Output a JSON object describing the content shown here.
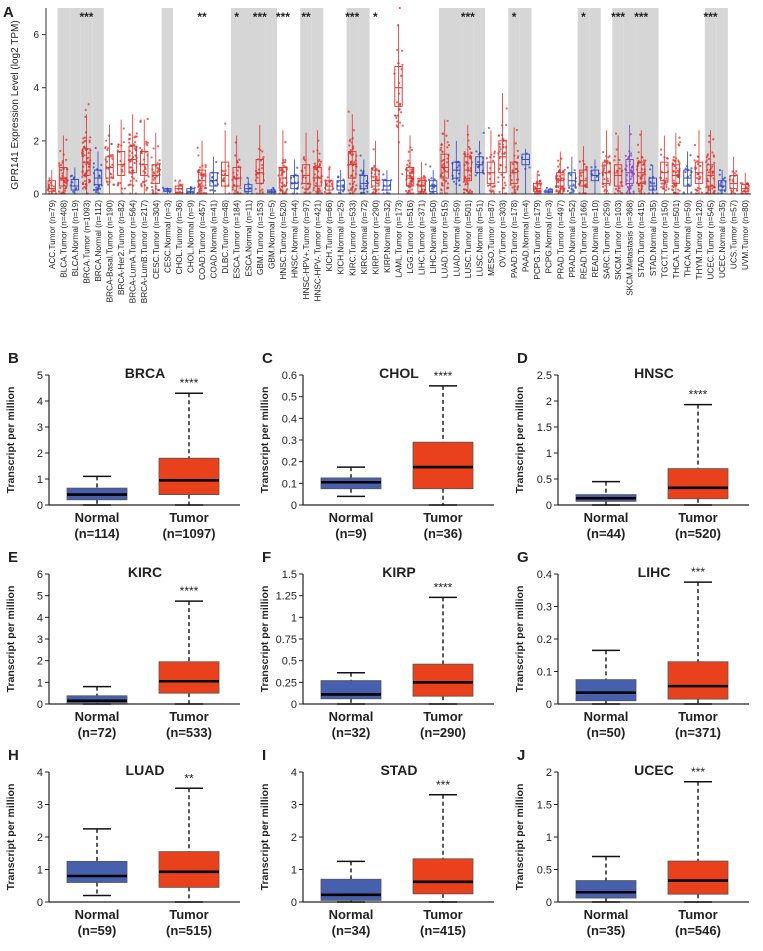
{
  "panel_a": {
    "letter": "A",
    "ylabel": "GPR141 Expression Level (log2 TPM)",
    "yticks": [
      0,
      2,
      4,
      6
    ],
    "ylim": [
      0,
      7
    ],
    "columns": [
      {
        "label": "ACC.Tumor (n=79)",
        "kind": "tumor",
        "median": 0.2,
        "q1": 0.1,
        "q3": 0.5,
        "max": 0.9,
        "shade": false,
        "sig": ""
      },
      {
        "label": "BLCA.Tumor (n=408)",
        "kind": "tumor",
        "median": 0.6,
        "q1": 0.3,
        "q3": 1.0,
        "max": 2.2,
        "shade": true,
        "sig": ""
      },
      {
        "label": "BLCA.Normal (n=19)",
        "kind": "normal",
        "median": 0.3,
        "q1": 0.15,
        "q3": 0.55,
        "max": 1.0,
        "shade": true,
        "sig": ""
      },
      {
        "label": "BRCA.Tumor (n=1093)",
        "kind": "tumor",
        "median": 1.2,
        "q1": 0.7,
        "q3": 1.7,
        "max": 3.0,
        "shade": true,
        "sig": "***"
      },
      {
        "label": "BRCA.Normal (n=112)",
        "kind": "normal",
        "median": 0.6,
        "q1": 0.35,
        "q3": 0.9,
        "max": 1.6,
        "shade": true,
        "sig": ""
      },
      {
        "label": "BRCA-Basal.Tumor (n=190)",
        "kind": "tumor",
        "median": 1.0,
        "q1": 0.6,
        "q3": 1.4,
        "max": 2.6,
        "shade": false,
        "sig": ""
      },
      {
        "label": "BRCA-Her2.Tumor (n=82)",
        "kind": "tumor",
        "median": 1.1,
        "q1": 0.7,
        "q3": 1.6,
        "max": 2.8,
        "shade": false,
        "sig": ""
      },
      {
        "label": "BRCA-LumA.Tumor (n=564)",
        "kind": "tumor",
        "median": 1.3,
        "q1": 0.8,
        "q3": 1.8,
        "max": 3.0,
        "shade": false,
        "sig": ""
      },
      {
        "label": "BRCA-LumB.Tumor (n=217)",
        "kind": "tumor",
        "median": 1.1,
        "q1": 0.7,
        "q3": 1.6,
        "max": 2.8,
        "shade": false,
        "sig": ""
      },
      {
        "label": "CESC.Tumor (n=304)",
        "kind": "tumor",
        "median": 0.7,
        "q1": 0.4,
        "q3": 1.1,
        "max": 2.3,
        "shade": false,
        "sig": ""
      },
      {
        "label": "CESC.Normal (n=3)",
        "kind": "normal",
        "median": 0.15,
        "q1": 0.1,
        "q3": 0.2,
        "max": 0.25,
        "shade": true,
        "sig": ""
      },
      {
        "label": "CHOL.Tumor (n=36)",
        "kind": "tumor",
        "median": 0.2,
        "q1": 0.05,
        "q3": 0.3,
        "max": 0.5,
        "shade": false,
        "sig": ""
      },
      {
        "label": "CHOL.Normal (n=9)",
        "kind": "normal",
        "median": 0.1,
        "q1": 0.05,
        "q3": 0.2,
        "max": 0.3,
        "shade": false,
        "sig": ""
      },
      {
        "label": "COAD.Tumor (n=457)",
        "kind": "tumor",
        "median": 0.5,
        "q1": 0.3,
        "q3": 0.9,
        "max": 2.0,
        "shade": false,
        "sig": "**"
      },
      {
        "label": "COAD.Normal (n=41)",
        "kind": "normal",
        "median": 0.5,
        "q1": 0.3,
        "q3": 0.8,
        "max": 1.4,
        "shade": false,
        "sig": ""
      },
      {
        "label": "DLBC.Tumor (n=48)",
        "kind": "tumor",
        "median": 0.7,
        "q1": 0.3,
        "q3": 1.2,
        "max": 2.4,
        "shade": false,
        "sig": ""
      },
      {
        "label": "ESCA.Tumor (n=184)",
        "kind": "tumor",
        "median": 0.6,
        "q1": 0.3,
        "q3": 1.0,
        "max": 2.2,
        "shade": true,
        "sig": "*"
      },
      {
        "label": "ESCA.Normal (n=11)",
        "kind": "normal",
        "median": 0.2,
        "q1": 0.1,
        "q3": 0.35,
        "max": 0.6,
        "shade": true,
        "sig": ""
      },
      {
        "label": "GBM.Tumor (n=153)",
        "kind": "tumor",
        "median": 0.8,
        "q1": 0.4,
        "q3": 1.3,
        "max": 2.6,
        "shade": true,
        "sig": "***"
      },
      {
        "label": "GBM.Normal (n=5)",
        "kind": "normal",
        "median": 0.1,
        "q1": 0.05,
        "q3": 0.15,
        "max": 0.2,
        "shade": true,
        "sig": ""
      },
      {
        "label": "HNSC.Tumor (n=520)",
        "kind": "tumor",
        "median": 0.6,
        "q1": 0.3,
        "q3": 1.0,
        "max": 2.4,
        "shade": false,
        "sig": "***"
      },
      {
        "label": "HNSC.Normal (n=44)",
        "kind": "normal",
        "median": 0.4,
        "q1": 0.2,
        "q3": 0.7,
        "max": 1.3,
        "shade": false,
        "sig": ""
      },
      {
        "label": "HNSC-HPV+.Tumor (n=97)",
        "kind": "tumor",
        "median": 0.7,
        "q1": 0.4,
        "q3": 1.1,
        "max": 2.3,
        "shade": true,
        "sig": "**"
      },
      {
        "label": "HNSC-HPV-.Tumor (n=421)",
        "kind": "tumor",
        "median": 0.6,
        "q1": 0.3,
        "q3": 1.0,
        "max": 2.4,
        "shade": true,
        "sig": ""
      },
      {
        "label": "KICH.Tumor (n=66)",
        "kind": "tumor",
        "median": 0.3,
        "q1": 0.15,
        "q3": 0.5,
        "max": 1.0,
        "shade": false,
        "sig": ""
      },
      {
        "label": "KICH.Normal (n=25)",
        "kind": "normal",
        "median": 0.3,
        "q1": 0.15,
        "q3": 0.5,
        "max": 0.9,
        "shade": false,
        "sig": ""
      },
      {
        "label": "KIRC.Tumor (n=533)",
        "kind": "tumor",
        "median": 1.1,
        "q1": 0.6,
        "q3": 1.6,
        "max": 3.0,
        "shade": true,
        "sig": "***"
      },
      {
        "label": "KIRC.Normal (n=72)",
        "kind": "normal",
        "median": 0.4,
        "q1": 0.2,
        "q3": 0.7,
        "max": 1.3,
        "shade": true,
        "sig": ""
      },
      {
        "label": "KIRP.Tumor (n=290)",
        "kind": "tumor",
        "median": 0.5,
        "q1": 0.3,
        "q3": 0.9,
        "max": 2.0,
        "shade": false,
        "sig": "*"
      },
      {
        "label": "KIRP.Normal (n=32)",
        "kind": "normal",
        "median": 0.3,
        "q1": 0.15,
        "q3": 0.5,
        "max": 0.9,
        "shade": false,
        "sig": ""
      },
      {
        "label": "LAML.Tumor (n=173)",
        "kind": "tumor",
        "median": 4.0,
        "q1": 3.3,
        "q3": 4.8,
        "max": 6.4,
        "shade": false,
        "sig": ""
      },
      {
        "label": "LGG.Tumor (n=516)",
        "kind": "tumor",
        "median": 0.6,
        "q1": 0.3,
        "q3": 1.0,
        "max": 2.2,
        "shade": false,
        "sig": ""
      },
      {
        "label": "LIHC.Tumor (n=371)",
        "kind": "tumor",
        "median": 0.3,
        "q1": 0.1,
        "q3": 0.5,
        "max": 1.2,
        "shade": false,
        "sig": ""
      },
      {
        "label": "LIHC.Normal (n=50)",
        "kind": "normal",
        "median": 0.3,
        "q1": 0.1,
        "q3": 0.5,
        "max": 0.9,
        "shade": false,
        "sig": ""
      },
      {
        "label": "LUAD.Tumor (n=515)",
        "kind": "tumor",
        "median": 1.0,
        "q1": 0.6,
        "q3": 1.5,
        "max": 2.8,
        "shade": true,
        "sig": ""
      },
      {
        "label": "LUAD.Normal (n=59)",
        "kind": "normal",
        "median": 0.9,
        "q1": 0.6,
        "q3": 1.2,
        "max": 2.0,
        "shade": true,
        "sig": ""
      },
      {
        "label": "LUSC.Tumor (n=501)",
        "kind": "tumor",
        "median": 0.9,
        "q1": 0.5,
        "q3": 1.4,
        "max": 2.6,
        "shade": true,
        "sig": "***"
      },
      {
        "label": "LUSC.Normal (n=51)",
        "kind": "normal",
        "median": 1.1,
        "q1": 0.8,
        "q3": 1.4,
        "max": 2.0,
        "shade": true,
        "sig": ""
      },
      {
        "label": "MESO.Tumor (n=87)",
        "kind": "tumor",
        "median": 0.8,
        "q1": 0.4,
        "q3": 1.2,
        "max": 2.4,
        "shade": false,
        "sig": ""
      },
      {
        "label": "OV.Tumor (n=303)",
        "kind": "tumor",
        "median": 1.4,
        "q1": 0.8,
        "q3": 2.0,
        "max": 3.8,
        "shade": false,
        "sig": ""
      },
      {
        "label": "PAAD.Tumor (n=178)",
        "kind": "tumor",
        "median": 0.8,
        "q1": 0.4,
        "q3": 1.2,
        "max": 2.5,
        "shade": true,
        "sig": "*"
      },
      {
        "label": "PAAD.Normal (n=4)",
        "kind": "normal",
        "median": 1.3,
        "q1": 1.1,
        "q3": 1.5,
        "max": 1.7,
        "shade": true,
        "sig": ""
      },
      {
        "label": "PCPG.Tumor (n=179)",
        "kind": "tumor",
        "median": 0.2,
        "q1": 0.1,
        "q3": 0.4,
        "max": 0.8,
        "shade": false,
        "sig": ""
      },
      {
        "label": "PCPG.Normal (n=3)",
        "kind": "normal",
        "median": 0.1,
        "q1": 0.05,
        "q3": 0.15,
        "max": 0.2,
        "shade": false,
        "sig": ""
      },
      {
        "label": "PRAD.Tumor (n=497)",
        "kind": "tumor",
        "median": 0.5,
        "q1": 0.3,
        "q3": 0.8,
        "max": 1.6,
        "shade": false,
        "sig": ""
      },
      {
        "label": "PRAD.Normal (n=52)",
        "kind": "normal",
        "median": 0.5,
        "q1": 0.3,
        "q3": 0.8,
        "max": 1.4,
        "shade": false,
        "sig": ""
      },
      {
        "label": "READ.Tumor (n=166)",
        "kind": "tumor",
        "median": 0.5,
        "q1": 0.3,
        "q3": 0.9,
        "max": 1.8,
        "shade": true,
        "sig": "*"
      },
      {
        "label": "READ.Normal (n=10)",
        "kind": "normal",
        "median": 0.7,
        "q1": 0.5,
        "q3": 0.9,
        "max": 1.3,
        "shade": true,
        "sig": ""
      },
      {
        "label": "SARC.Tumor (n=259)",
        "kind": "tumor",
        "median": 0.8,
        "q1": 0.4,
        "q3": 1.2,
        "max": 2.4,
        "shade": false,
        "sig": ""
      },
      {
        "label": "SKCM.Tumor (n=103)",
        "kind": "tumor",
        "median": 0.7,
        "q1": 0.3,
        "q3": 1.1,
        "max": 2.2,
        "shade": true,
        "sig": "***"
      },
      {
        "label": "SKCM.Metastasis (n=368)",
        "kind": "metastasis",
        "median": 0.8,
        "q1": 0.4,
        "q3": 1.3,
        "max": 2.6,
        "shade": true,
        "sig": ""
      },
      {
        "label": "STAD.Tumor (n=415)",
        "kind": "tumor",
        "median": 0.8,
        "q1": 0.4,
        "q3": 1.2,
        "max": 2.4,
        "shade": true,
        "sig": "***"
      },
      {
        "label": "STAD.Normal (n=35)",
        "kind": "normal",
        "median": 0.3,
        "q1": 0.15,
        "q3": 0.6,
        "max": 1.1,
        "shade": true,
        "sig": ""
      },
      {
        "label": "TGCT.Tumor (n=150)",
        "kind": "tumor",
        "median": 0.8,
        "q1": 0.5,
        "q3": 1.2,
        "max": 2.2,
        "shade": false,
        "sig": ""
      },
      {
        "label": "THCA.Tumor (n=501)",
        "kind": "tumor",
        "median": 0.7,
        "q1": 0.4,
        "q3": 1.1,
        "max": 2.3,
        "shade": false,
        "sig": ""
      },
      {
        "label": "THCA.Normal (n=59)",
        "kind": "normal",
        "median": 0.6,
        "q1": 0.3,
        "q3": 0.9,
        "max": 1.6,
        "shade": false,
        "sig": ""
      },
      {
        "label": "THYM.Tumor (n=120)",
        "kind": "tumor",
        "median": 0.8,
        "q1": 0.4,
        "q3": 1.2,
        "max": 2.4,
        "shade": false,
        "sig": ""
      },
      {
        "label": "UCEC.Tumor (n=545)",
        "kind": "tumor",
        "median": 0.7,
        "q1": 0.3,
        "q3": 1.1,
        "max": 2.4,
        "shade": true,
        "sig": "***"
      },
      {
        "label": "UCEC.Normal (n=35)",
        "kind": "normal",
        "median": 0.3,
        "q1": 0.15,
        "q3": 0.5,
        "max": 0.9,
        "shade": true,
        "sig": ""
      },
      {
        "label": "UCS.Tumor (n=57)",
        "kind": "tumor",
        "median": 0.4,
        "q1": 0.2,
        "q3": 0.7,
        "max": 1.4,
        "shade": false,
        "sig": ""
      },
      {
        "label": "UVM.Tumor (n=80)",
        "kind": "tumor",
        "median": 0.2,
        "q1": 0.1,
        "q3": 0.35,
        "max": 0.8,
        "shade": false,
        "sig": ""
      }
    ]
  },
  "chart_data": [
    {
      "type": "box",
      "letter": "B",
      "title": "BRCA",
      "ylabel": "Transcript per million",
      "yticks": [
        0,
        1,
        2,
        3,
        4,
        5
      ],
      "ylim": [
        0,
        5
      ],
      "sig": "****",
      "groups": [
        {
          "name": "Normal",
          "n": "(n=114)",
          "min": 0.0,
          "q1": 0.2,
          "median": 0.4,
          "q3": 0.65,
          "max": 1.1
        },
        {
          "name": "Tumor",
          "n": "(n=1097)",
          "min": 0.0,
          "q1": 0.4,
          "median": 0.95,
          "q3": 1.8,
          "max": 4.3
        }
      ]
    },
    {
      "type": "box",
      "letter": "C",
      "title": "CHOL",
      "ylabel": "Transcript per million",
      "yticks": [
        0,
        0.1,
        0.2,
        0.3,
        0.4,
        0.5,
        0.6
      ],
      "ylim": [
        0,
        0.6
      ],
      "sig": "****",
      "groups": [
        {
          "name": "Normal",
          "n": "(n=9)",
          "min": 0.04,
          "q1": 0.075,
          "median": 0.105,
          "q3": 0.125,
          "max": 0.175
        },
        {
          "name": "Tumor",
          "n": "(n=36)",
          "min": 0.0,
          "q1": 0.075,
          "median": 0.175,
          "q3": 0.29,
          "max": 0.55
        }
      ]
    },
    {
      "type": "box",
      "letter": "D",
      "title": "HNSC",
      "ylabel": "Transcript per million",
      "yticks": [
        0,
        0.5,
        1,
        1.5,
        2,
        2.5
      ],
      "ylim": [
        0,
        2.5
      ],
      "sig": "****",
      "groups": [
        {
          "name": "Normal",
          "n": "(n=44)",
          "min": 0.0,
          "q1": 0.07,
          "median": 0.13,
          "q3": 0.2,
          "max": 0.45
        },
        {
          "name": "Tumor",
          "n": "(n=520)",
          "min": 0.0,
          "q1": 0.12,
          "median": 0.33,
          "q3": 0.7,
          "max": 1.93
        }
      ]
    },
    {
      "type": "box",
      "letter": "E",
      "title": "KIRC",
      "ylabel": "Transcript per million",
      "yticks": [
        0,
        1,
        2,
        3,
        4,
        5,
        6
      ],
      "ylim": [
        0,
        6
      ],
      "sig": "****",
      "groups": [
        {
          "name": "Normal",
          "n": "(n=72)",
          "min": 0.0,
          "q1": 0.05,
          "median": 0.15,
          "q3": 0.38,
          "max": 0.8
        },
        {
          "name": "Tumor",
          "n": "(n=533)",
          "min": 0.0,
          "q1": 0.5,
          "median": 1.05,
          "q3": 1.95,
          "max": 4.75
        }
      ]
    },
    {
      "type": "box",
      "letter": "F",
      "title": "KIRP",
      "ylabel": "Transcript per million",
      "yticks": [
        0,
        0.25,
        0.5,
        0.75,
        1,
        1.25,
        1.5
      ],
      "ylim": [
        0,
        1.5
      ],
      "sig": "****",
      "groups": [
        {
          "name": "Normal",
          "n": "(n=32)",
          "min": 0.0,
          "q1": 0.06,
          "median": 0.11,
          "q3": 0.27,
          "max": 0.36
        },
        {
          "name": "Tumor",
          "n": "(n=290)",
          "min": 0.0,
          "q1": 0.09,
          "median": 0.25,
          "q3": 0.46,
          "max": 1.23
        }
      ]
    },
    {
      "type": "box",
      "letter": "G",
      "title": "LIHC",
      "ylabel": "Transcript per million",
      "yticks": [
        0,
        0.1,
        0.2,
        0.3,
        0.4
      ],
      "ylim": [
        0,
        0.4
      ],
      "sig": "***",
      "groups": [
        {
          "name": "Normal",
          "n": "(n=50)",
          "min": 0.0,
          "q1": 0.01,
          "median": 0.035,
          "q3": 0.075,
          "max": 0.165
        },
        {
          "name": "Tumor",
          "n": "(n=371)",
          "min": 0.0,
          "q1": 0.015,
          "median": 0.055,
          "q3": 0.13,
          "max": 0.375
        }
      ]
    },
    {
      "type": "box",
      "letter": "H",
      "title": "LUAD",
      "ylabel": "Transcript per million",
      "yticks": [
        0,
        1,
        2,
        3,
        4
      ],
      "ylim": [
        0,
        4
      ],
      "sig": "**",
      "groups": [
        {
          "name": "Normal",
          "n": "(n=59)",
          "min": 0.2,
          "q1": 0.6,
          "median": 0.8,
          "q3": 1.25,
          "max": 2.25
        },
        {
          "name": "Tumor",
          "n": "(n=515)",
          "min": 0.0,
          "q1": 0.45,
          "median": 0.93,
          "q3": 1.55,
          "max": 3.5
        }
      ]
    },
    {
      "type": "box",
      "letter": "I",
      "title": "STAD",
      "ylabel": "Transcript per million",
      "yticks": [
        0,
        1,
        2,
        3,
        4
      ],
      "ylim": [
        0,
        4
      ],
      "sig": "***",
      "groups": [
        {
          "name": "Normal",
          "n": "(n=34)",
          "min": 0.0,
          "q1": 0.05,
          "median": 0.22,
          "q3": 0.7,
          "max": 1.25
        },
        {
          "name": "Tumor",
          "n": "(n=415)",
          "min": 0.0,
          "q1": 0.25,
          "median": 0.62,
          "q3": 1.33,
          "max": 3.3
        }
      ]
    },
    {
      "type": "box",
      "letter": "J",
      "title": "UCEC",
      "ylabel": "Transcript per million",
      "yticks": [
        0,
        0.5,
        1,
        1.5,
        2
      ],
      "ylim": [
        0,
        2
      ],
      "sig": "***",
      "groups": [
        {
          "name": "Normal",
          "n": "(n=35)",
          "min": 0.0,
          "q1": 0.06,
          "median": 0.15,
          "q3": 0.33,
          "max": 0.7
        },
        {
          "name": "Tumor",
          "n": "(n=546)",
          "min": 0.0,
          "q1": 0.12,
          "median": 0.33,
          "q3": 0.63,
          "max": 1.85
        }
      ]
    }
  ],
  "colors": {
    "tumor_box": "#e8411c",
    "normal_box": "#4760ad",
    "panel_a_tumor": "#e0302a",
    "panel_a_normal": "#2f47c6",
    "panel_a_metastasis": "#8a3cc6",
    "shade": "#d6d6d6"
  }
}
